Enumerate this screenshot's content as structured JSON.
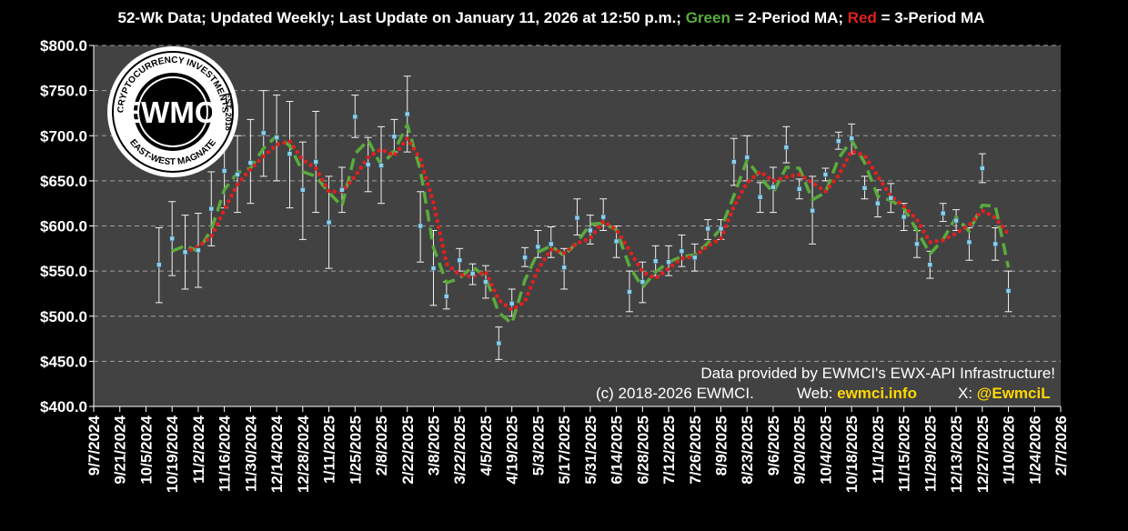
{
  "chart_data": {
    "type": "line",
    "title": {
      "part1": "52-Wk Data; Updated Weekly; Last Update on January 11, 2026 at 12:50 p.m.; ",
      "green_word": "Green",
      "part2": " = 2-Period MA; ",
      "red_word": "Red",
      "part3": " = 3-Period MA"
    },
    "ylim": [
      400,
      800
    ],
    "y_ticks": [
      {
        "value": 400,
        "label": "$400.0"
      },
      {
        "value": 450,
        "label": "$450.0"
      },
      {
        "value": 500,
        "label": "$500.0"
      },
      {
        "value": 550,
        "label": "$550.0"
      },
      {
        "value": 600,
        "label": "$600.0"
      },
      {
        "value": 650,
        "label": "$650.0"
      },
      {
        "value": 700,
        "label": "$700.0"
      },
      {
        "value": 750,
        "label": "$750.0"
      },
      {
        "value": 800,
        "label": "$800.0"
      }
    ],
    "x_ticks": [
      "9/7/2024",
      "9/21/2024",
      "10/5/2024",
      "10/19/2024",
      "11/2/2024",
      "11/16/2024",
      "11/30/2024",
      "12/14/2024",
      "12/28/2024",
      "1/11/2025",
      "1/25/2025",
      "2/8/2025",
      "2/22/2025",
      "3/8/2025",
      "3/22/2025",
      "4/5/2025",
      "4/19/2025",
      "5/3/2025",
      "5/17/2025",
      "5/31/2025",
      "6/14/2025",
      "6/28/2025",
      "7/12/2025",
      "7/26/2025",
      "8/9/2025",
      "8/23/2025",
      "9/6/2025",
      "9/20/2025",
      "10/4/2025",
      "10/18/2025",
      "11/1/2025",
      "11/15/2025",
      "11/29/2025",
      "12/13/2025",
      "12/27/2025",
      "1/10/2026",
      "1/24/2026",
      "2/7/2026"
    ],
    "grid": true,
    "series": [
      {
        "name": "",
        "kind": "points_with_error_bars",
        "color": "#8ecfe6",
        "x": [
          "10/12/2024",
          "10/19/2024",
          "10/26/2024",
          "11/2/2024",
          "11/9/2024",
          "11/16/2024",
          "11/23/2024",
          "11/30/2024",
          "12/7/2024",
          "12/14/2024",
          "12/21/2024",
          "12/28/2024",
          "1/4/2025",
          "1/11/2025",
          "1/18/2025",
          "1/25/2025",
          "2/1/2025",
          "2/8/2025",
          "2/15/2025",
          "2/22/2025",
          "3/1/2025",
          "3/8/2025",
          "3/15/2025",
          "3/22/2025",
          "3/29/2025",
          "4/5/2025",
          "4/12/2025",
          "4/19/2025",
          "4/26/2025",
          "5/3/2025",
          "5/10/2025",
          "5/17/2025",
          "5/24/2025",
          "5/31/2025",
          "6/7/2025",
          "6/14/2025",
          "6/21/2025",
          "6/28/2025",
          "7/5/2025",
          "7/12/2025",
          "7/19/2025",
          "7/26/2025",
          "8/2/2025",
          "8/9/2025",
          "8/16/2025",
          "8/23/2025",
          "8/30/2025",
          "9/6/2025",
          "9/13/2025",
          "9/20/2025",
          "9/27/2025",
          "10/4/2025",
          "10/11/2025",
          "10/18/2025",
          "10/25/2025",
          "11/1/2025",
          "11/8/2025",
          "11/15/2025",
          "11/22/2025",
          "11/29/2025",
          "12/6/2025",
          "12/13/2025",
          "12/20/2025",
          "12/27/2025",
          "1/3/2026",
          "1/10/2026"
        ],
        "y": [
          557,
          586,
          571,
          573,
          619,
          661,
          657,
          670,
          703,
          698,
          680,
          640,
          671,
          604,
          640,
          721,
          668,
          667,
          699,
          724,
          600,
          553,
          522,
          562,
          547,
          538,
          470,
          514,
          565,
          577,
          580,
          554,
          609,
          595,
          610,
          583,
          527,
          538,
          561,
          560,
          572,
          565,
          597,
          597,
          671,
          676,
          632,
          643,
          687,
          641,
          617,
          657,
          694,
          697,
          642,
          625,
          631,
          610,
          580,
          557,
          614,
          606,
          582,
          664,
          580,
          528
        ],
        "low": [
          515,
          545,
          530,
          532,
          578,
          620,
          615,
          625,
          655,
          650,
          620,
          585,
          615,
          553,
          615,
          698,
          638,
          625,
          682,
          682,
          560,
          512,
          508,
          550,
          535,
          520,
          452,
          500,
          555,
          565,
          565,
          530,
          590,
          580,
          595,
          565,
          505,
          515,
          545,
          545,
          555,
          550,
          585,
          585,
          645,
          650,
          615,
          615,
          670,
          630,
          580,
          650,
          685,
          680,
          630,
          610,
          615,
          595,
          565,
          542,
          605,
          595,
          562,
          648,
          562,
          505
        ],
        "high": [
          598,
          627,
          612,
          614,
          660,
          700,
          700,
          718,
          750,
          745,
          738,
          693,
          727,
          655,
          665,
          745,
          698,
          710,
          718,
          766,
          638,
          595,
          538,
          575,
          558,
          556,
          488,
          530,
          576,
          595,
          599,
          575,
          630,
          612,
          630,
          600,
          550,
          560,
          578,
          578,
          590,
          580,
          607,
          607,
          697,
          700,
          648,
          665,
          710,
          652,
          655,
          664,
          704,
          713,
          655,
          640,
          647,
          625,
          595,
          572,
          625,
          618,
          598,
          680,
          598,
          550
        ]
      },
      {
        "name": "2-Period MA",
        "color": "#5aab3c",
        "style": "dashed",
        "y": [
          null,
          572,
          578,
          572,
          596,
          640,
          659,
          664,
          686,
          700,
          689,
          660,
          655,
          637,
          622,
          680,
          695,
          667,
          683,
          712,
          662,
          576,
          537,
          542,
          555,
          543,
          504,
          492,
          540,
          571,
          578,
          567,
          582,
          602,
          603,
          596,
          555,
          532,
          549,
          560,
          566,
          568,
          581,
          597,
          634,
          673,
          654,
          637,
          665,
          664,
          629,
          637,
          675,
          695,
          670,
          633,
          628,
          620,
          595,
          569,
          585,
          610,
          594,
          623,
          622,
          554
        ]
      },
      {
        "name": "3-Period MA",
        "color": "#e02020",
        "style": "dotted",
        "y": [
          null,
          null,
          571,
          577,
          588,
          618,
          646,
          663,
          677,
          690,
          694,
          673,
          664,
          638,
          638,
          655,
          676,
          685,
          678,
          697,
          674,
          626,
          558,
          546,
          544,
          549,
          518,
          507,
          516,
          552,
          574,
          570,
          581,
          586,
          605,
          596,
          573,
          549,
          542,
          553,
          564,
          566,
          578,
          586,
          622,
          648,
          660,
          650,
          654,
          657,
          648,
          638,
          656,
          683,
          678,
          655,
          633,
          622,
          607,
          582,
          584,
          592,
          601,
          617,
          609,
          591
        ]
      }
    ]
  },
  "logo": {
    "text": "EWMCI",
    "ring_top": "CRYPTOCURRENCY INVESTMENTS",
    "ring_bottom": "EAST-WEST MAGNATE",
    "ring_right": "EST. 2018"
  },
  "credits": {
    "line1": "Data provided by EWMCI's EWX-API Infrastructure!",
    "line2_copyright": "(c) 2018-2026 EWMCI.",
    "web_label": "Web:",
    "web_value": "ewmci.info",
    "x_label": "X:",
    "x_value": "@EwmciL"
  },
  "colors": {
    "background": "#000000",
    "plot_area": "#424242",
    "grid": "#a0a0a0",
    "highlight": "#ffd700",
    "green": "#5aab3c",
    "red": "#e02020"
  }
}
